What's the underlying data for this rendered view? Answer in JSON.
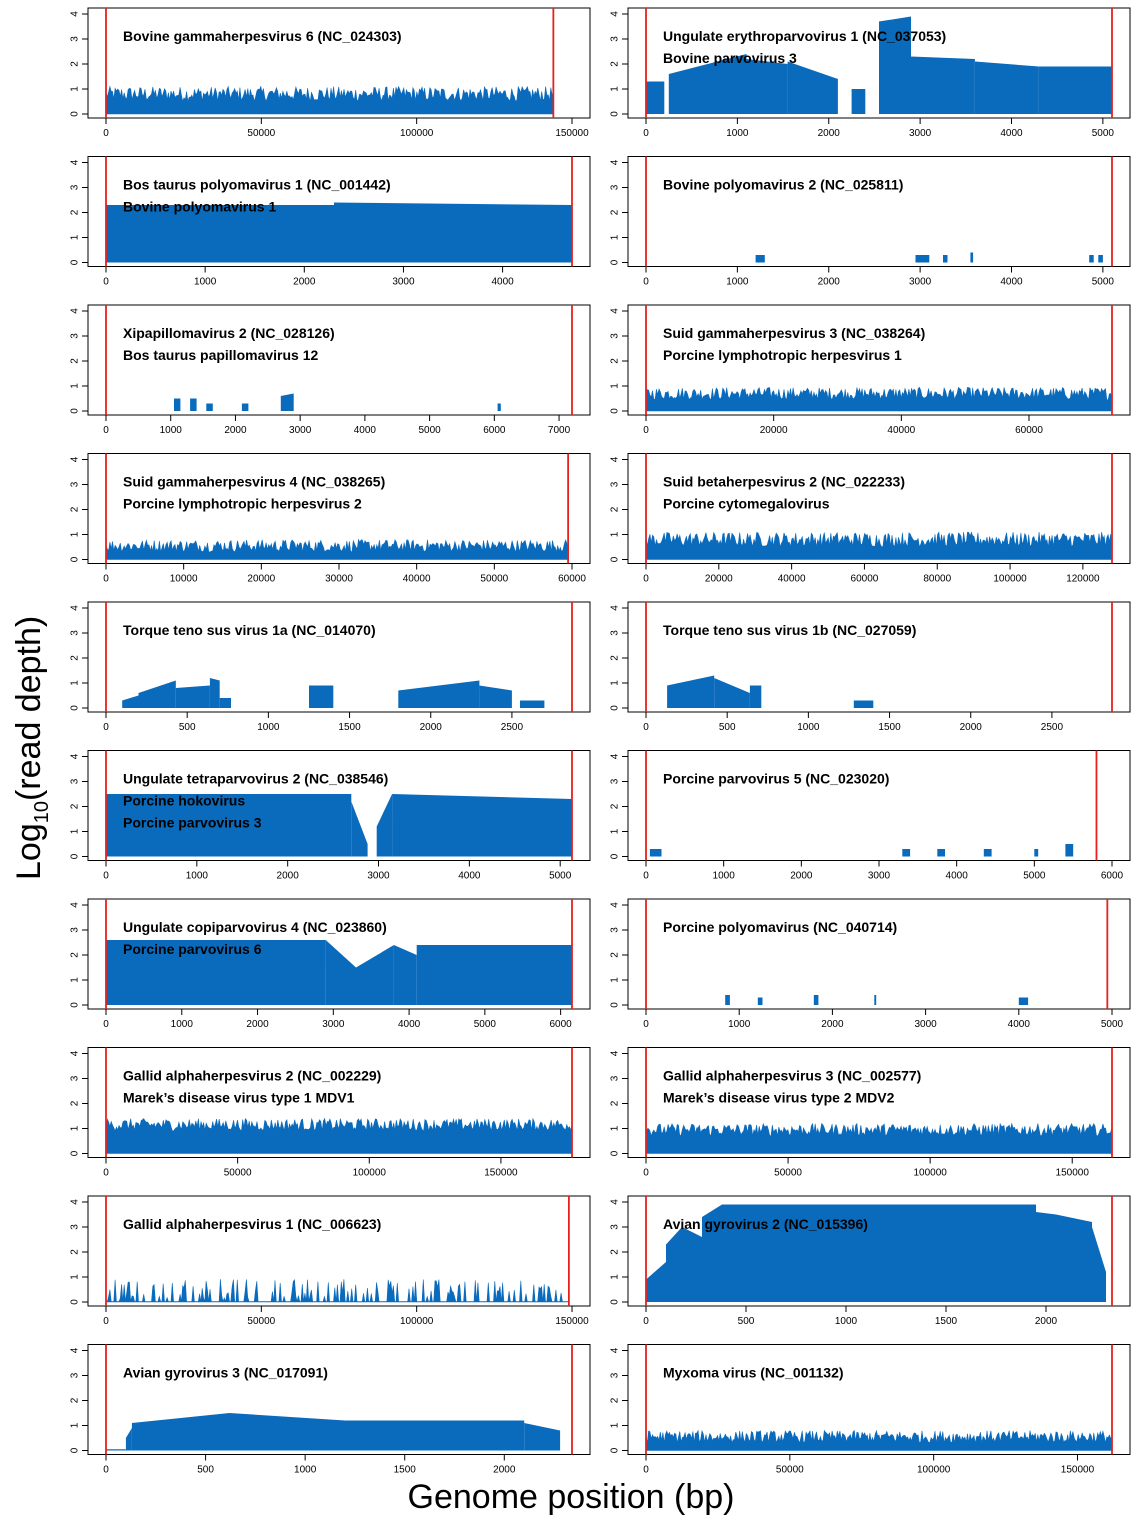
{
  "figure": {
    "ylabel_prefix": "Log",
    "ylabel_sub": "10",
    "ylabel_suffix": "(read depth)",
    "xlabel": "Genome position (bp)",
    "bar_color": "#0a6bbd",
    "boundary_color": "#e8211c"
  },
  "chart_data": [
    {
      "type": "area",
      "title": "Bovine gammaherpesvirus 6 (NC_024303)",
      "subtitle": "",
      "genome_length": 144000,
      "x_ticks": [
        0,
        50000,
        100000,
        150000
      ],
      "xlim": [
        0,
        150000
      ],
      "ylim": [
        0,
        4
      ],
      "y_ticks": [
        0,
        1,
        2,
        3,
        4
      ],
      "profile": "noisy",
      "depth": [
        [
          0,
          144000,
          0.8,
          0.3
        ]
      ]
    },
    {
      "type": "area",
      "title": "Ungulate erythroparvovirus 1 (NC_037053)",
      "subtitle": "Bovine parvovirus 3",
      "genome_length": 5100,
      "x_ticks": [
        0,
        1000,
        2000,
        3000,
        4000,
        5000
      ],
      "xlim": [
        0,
        5100
      ],
      "ylim": [
        0,
        4
      ],
      "y_ticks": [
        0,
        1,
        2,
        3,
        4
      ],
      "profile": "segments",
      "depth": [
        [
          0,
          200,
          1.3,
          1.3
        ],
        [
          250,
          1100,
          1.6,
          2.4
        ],
        [
          1100,
          1550,
          2.2,
          2.0
        ],
        [
          1550,
          2100,
          2.1,
          1.4
        ],
        [
          2250,
          2400,
          1.0,
          1.0
        ],
        [
          2550,
          2900,
          3.7,
          3.9
        ],
        [
          2900,
          3600,
          2.3,
          2.2
        ],
        [
          3600,
          4300,
          2.1,
          1.9
        ],
        [
          4300,
          5100,
          1.9,
          1.9
        ]
      ]
    },
    {
      "type": "area",
      "title": "Bos taurus polyomavirus 1 (NC_001442)",
      "subtitle": "Bovine polyomavirus 1",
      "genome_length": 4700,
      "x_ticks": [
        0,
        1000,
        2000,
        3000,
        4000
      ],
      "xlim": [
        0,
        4700
      ],
      "ylim": [
        0,
        4
      ],
      "y_ticks": [
        0,
        1,
        2,
        3,
        4
      ],
      "profile": "segments",
      "depth": [
        [
          0,
          2300,
          2.3,
          2.3
        ],
        [
          2300,
          4700,
          2.4,
          2.3
        ]
      ]
    },
    {
      "type": "area",
      "title": "Bovine polyomavirus 2 (NC_025811)",
      "subtitle": "",
      "genome_length": 5100,
      "x_ticks": [
        0,
        1000,
        2000,
        3000,
        4000,
        5000
      ],
      "xlim": [
        0,
        5100
      ],
      "ylim": [
        0,
        4
      ],
      "y_ticks": [
        0,
        1,
        2,
        3,
        4
      ],
      "profile": "segments",
      "depth": [
        [
          1200,
          1300,
          0.3,
          0.3
        ],
        [
          2950,
          3100,
          0.3,
          0.3
        ],
        [
          3250,
          3300,
          0.3,
          0.3
        ],
        [
          3550,
          3580,
          0.4,
          0.4
        ],
        [
          4850,
          4900,
          0.3,
          0.3
        ],
        [
          4950,
          5000,
          0.3,
          0.3
        ]
      ]
    },
    {
      "type": "area",
      "title": "Xipapillomavirus 2 (NC_028126)",
      "subtitle": "Bos taurus papillomavirus 12",
      "genome_length": 7200,
      "x_ticks": [
        0,
        1000,
        2000,
        3000,
        4000,
        5000,
        6000,
        7000
      ],
      "xlim": [
        0,
        7200
      ],
      "ylim": [
        0,
        4
      ],
      "y_ticks": [
        0,
        1,
        2,
        3,
        4
      ],
      "profile": "segments",
      "depth": [
        [
          1050,
          1150,
          0.5,
          0.5
        ],
        [
          1300,
          1400,
          0.5,
          0.5
        ],
        [
          1550,
          1650,
          0.3,
          0.3
        ],
        [
          2100,
          2200,
          0.3,
          0.3
        ],
        [
          2700,
          2900,
          0.6,
          0.7
        ],
        [
          6050,
          6100,
          0.3,
          0.3
        ]
      ]
    },
    {
      "type": "area",
      "title": "Suid gammaherpesvirus 3 (NC_038264)",
      "subtitle": "Porcine lymphotropic herpesvirus 1",
      "genome_length": 73000,
      "x_ticks": [
        0,
        20000,
        40000,
        60000
      ],
      "xlim": [
        0,
        73000
      ],
      "ylim": [
        0,
        4
      ],
      "y_ticks": [
        0,
        1,
        2,
        3,
        4
      ],
      "profile": "noisy",
      "depth": [
        [
          0,
          73000,
          0.7,
          0.25
        ]
      ]
    },
    {
      "type": "area",
      "title": "Suid gammaherpesvirus 4 (NC_038265)",
      "subtitle": "Porcine lymphotropic herpesvirus 2",
      "genome_length": 59500,
      "x_ticks": [
        0,
        10000,
        20000,
        30000,
        40000,
        50000,
        60000
      ],
      "xlim": [
        0,
        60000
      ],
      "ylim": [
        0,
        4
      ],
      "y_ticks": [
        0,
        1,
        2,
        3,
        4
      ],
      "profile": "noisy",
      "depth": [
        [
          0,
          59500,
          0.55,
          0.25
        ]
      ]
    },
    {
      "type": "area",
      "title": "Suid betaherpesvirus 2 (NC_022233)",
      "subtitle": "Porcine cytomegalovirus",
      "genome_length": 128000,
      "x_ticks": [
        0,
        20000,
        40000,
        60000,
        80000,
        100000,
        120000
      ],
      "xlim": [
        0,
        128000
      ],
      "ylim": [
        0,
        4
      ],
      "y_ticks": [
        0,
        1,
        2,
        3,
        4
      ],
      "profile": "noisy",
      "depth": [
        [
          0,
          128000,
          0.8,
          0.3
        ]
      ]
    },
    {
      "type": "area",
      "title": "Torque teno sus virus 1a (NC_014070)",
      "subtitle": "",
      "genome_length": 2870,
      "x_ticks": [
        0,
        500,
        1000,
        1500,
        2000,
        2500
      ],
      "xlim": [
        0,
        2870
      ],
      "ylim": [
        0,
        4
      ],
      "y_ticks": [
        0,
        1,
        2,
        3,
        4
      ],
      "profile": "segments",
      "depth": [
        [
          100,
          200,
          0.3,
          0.5
        ],
        [
          200,
          430,
          0.6,
          1.1
        ],
        [
          430,
          640,
          0.8,
          0.9
        ],
        [
          640,
          700,
          1.2,
          1.1
        ],
        [
          700,
          770,
          0.4,
          0.4
        ],
        [
          1250,
          1400,
          0.9,
          0.9
        ],
        [
          1800,
          2300,
          0.7,
          1.1
        ],
        [
          2300,
          2500,
          0.9,
          0.7
        ],
        [
          2550,
          2700,
          0.3,
          0.3
        ]
      ]
    },
    {
      "type": "area",
      "title": "Torque teno sus virus 1b (NC_027059)",
      "subtitle": "",
      "genome_length": 2870,
      "x_ticks": [
        0,
        500,
        1000,
        1500,
        2000,
        2500
      ],
      "xlim": [
        0,
        2870
      ],
      "ylim": [
        0,
        4
      ],
      "y_ticks": [
        0,
        1,
        2,
        3,
        4
      ],
      "profile": "segments",
      "depth": [
        [
          130,
          420,
          0.9,
          1.3
        ],
        [
          420,
          640,
          1.2,
          0.6
        ],
        [
          640,
          710,
          0.9,
          0.9
        ],
        [
          1280,
          1400,
          0.3,
          0.3
        ]
      ]
    },
    {
      "type": "area",
      "title": "Ungulate tetraparvovirus 2 (NC_038546)",
      "subtitle": "Porcine hokovirus",
      "subtitle2": "Porcine parvovirus 3",
      "genome_length": 5130,
      "x_ticks": [
        0,
        1000,
        2000,
        3000,
        4000,
        5000
      ],
      "xlim": [
        0,
        5130
      ],
      "ylim": [
        0,
        4
      ],
      "y_ticks": [
        0,
        1,
        2,
        3,
        4
      ],
      "profile": "segments",
      "depth": [
        [
          0,
          2700,
          2.5,
          2.5
        ],
        [
          2700,
          2880,
          2.2,
          0.5
        ],
        [
          2980,
          3150,
          1.2,
          2.5
        ],
        [
          3150,
          5130,
          2.5,
          2.3
        ]
      ]
    },
    {
      "type": "area",
      "title": "Porcine parvovirus 5 (NC_023020)",
      "subtitle": "",
      "genome_length": 5800,
      "x_ticks": [
        0,
        1000,
        2000,
        3000,
        4000,
        5000,
        6000
      ],
      "xlim": [
        0,
        6000
      ],
      "ylim": [
        0,
        4
      ],
      "y_ticks": [
        0,
        1,
        2,
        3,
        4
      ],
      "profile": "segments",
      "depth": [
        [
          50,
          200,
          0.3,
          0.3
        ],
        [
          3300,
          3400,
          0.3,
          0.3
        ],
        [
          3750,
          3850,
          0.3,
          0.3
        ],
        [
          4350,
          4450,
          0.3,
          0.3
        ],
        [
          5000,
          5050,
          0.3,
          0.3
        ],
        [
          5400,
          5500,
          0.5,
          0.5
        ]
      ]
    },
    {
      "type": "area",
      "title": "Ungulate copiparvovirus 4 (NC_023860)",
      "subtitle": "Porcine parvovirus 6",
      "genome_length": 6150,
      "x_ticks": [
        0,
        1000,
        2000,
        3000,
        4000,
        5000,
        6000
      ],
      "xlim": [
        0,
        6150
      ],
      "ylim": [
        0,
        4
      ],
      "y_ticks": [
        0,
        1,
        2,
        3,
        4
      ],
      "profile": "segments",
      "depth": [
        [
          0,
          2900,
          2.6,
          2.6
        ],
        [
          2900,
          3300,
          2.6,
          1.5
        ],
        [
          3300,
          3800,
          1.5,
          2.4
        ],
        [
          3800,
          4100,
          2.4,
          2.0
        ],
        [
          4100,
          6150,
          2.4,
          2.4
        ]
      ]
    },
    {
      "type": "area",
      "title": "Porcine polyomavirus (NC_040714)",
      "subtitle": "",
      "genome_length": 4950,
      "x_ticks": [
        0,
        1000,
        2000,
        3000,
        4000,
        5000
      ],
      "xlim": [
        0,
        5000
      ],
      "ylim": [
        0,
        4
      ],
      "y_ticks": [
        0,
        1,
        2,
        3,
        4
      ],
      "profile": "segments",
      "depth": [
        [
          850,
          900,
          0.4,
          0.4
        ],
        [
          1200,
          1250,
          0.3,
          0.3
        ],
        [
          1800,
          1850,
          0.4,
          0.4
        ],
        [
          2450,
          2470,
          0.4,
          0.4
        ],
        [
          4000,
          4100,
          0.3,
          0.3
        ]
      ]
    },
    {
      "type": "area",
      "title": "Gallid alphaherpesvirus 2 (NC_002229)",
      "subtitle": "Marek’s disease virus type 1 MDV1",
      "genome_length": 177000,
      "x_ticks": [
        0,
        50000,
        100000,
        150000
      ],
      "xlim": [
        0,
        177000
      ],
      "ylim": [
        0,
        4
      ],
      "y_ticks": [
        0,
        1,
        2,
        3,
        4
      ],
      "profile": "noisy",
      "depth": [
        [
          0,
          177000,
          1.15,
          0.25
        ]
      ]
    },
    {
      "type": "area",
      "title": "Gallid alphaherpesvirus 3 (NC_002577)",
      "subtitle": "Marek’s disease virus type 2 MDV2",
      "genome_length": 164000,
      "x_ticks": [
        0,
        50000,
        100000,
        150000
      ],
      "xlim": [
        0,
        164000
      ],
      "ylim": [
        0,
        4
      ],
      "y_ticks": [
        0,
        1,
        2,
        3,
        4
      ],
      "profile": "noisy",
      "depth": [
        [
          0,
          164000,
          0.95,
          0.25
        ]
      ]
    },
    {
      "type": "area",
      "title": "Gallid alphaherpesvirus 1 (NC_006623)",
      "subtitle": "",
      "genome_length": 149000,
      "x_ticks": [
        0,
        50000,
        100000,
        150000
      ],
      "xlim": [
        0,
        150000
      ],
      "ylim": [
        0,
        4
      ],
      "y_ticks": [
        0,
        1,
        2,
        3,
        4
      ],
      "profile": "sparse",
      "depth": [
        [
          0,
          149000,
          0.5,
          0.35
        ]
      ]
    },
    {
      "type": "area",
      "title": "Avian gyrovirus 2 (NC_015396)",
      "subtitle": "",
      "genome_length": 2330,
      "x_ticks": [
        0,
        500,
        1000,
        1500,
        2000
      ],
      "xlim": [
        0,
        2330
      ],
      "ylim": [
        0,
        4
      ],
      "y_ticks": [
        0,
        1,
        2,
        3,
        4
      ],
      "profile": "segments",
      "depth": [
        [
          0,
          100,
          0.9,
          1.6
        ],
        [
          100,
          180,
          2.3,
          3.0
        ],
        [
          180,
          280,
          3.0,
          2.6
        ],
        [
          280,
          380,
          3.4,
          3.9
        ],
        [
          380,
          1950,
          3.9,
          3.9
        ],
        [
          1950,
          2050,
          3.6,
          3.5
        ],
        [
          2050,
          2230,
          3.5,
          3.2
        ],
        [
          2230,
          2300,
          3.0,
          1.2
        ]
      ]
    },
    {
      "type": "area",
      "title": "Avian gyrovirus 3 (NC_017091)",
      "subtitle": "",
      "genome_length": 2340,
      "x_ticks": [
        0,
        500,
        1000,
        1500,
        2000
      ],
      "xlim": [
        0,
        2340
      ],
      "ylim": [
        0,
        4
      ],
      "y_ticks": [
        0,
        1,
        2,
        3,
        4
      ],
      "profile": "segments",
      "depth": [
        [
          0,
          100,
          0.05,
          0.05
        ],
        [
          100,
          130,
          0.5,
          0.9
        ],
        [
          130,
          620,
          1.1,
          1.5
        ],
        [
          620,
          1200,
          1.5,
          1.2
        ],
        [
          1200,
          2100,
          1.2,
          1.2
        ],
        [
          2100,
          2280,
          1.1,
          0.8
        ]
      ]
    },
    {
      "type": "area",
      "title": "Myxoma virus (NC_001132)",
      "subtitle": "",
      "genome_length": 162000,
      "x_ticks": [
        0,
        50000,
        100000,
        150000
      ],
      "xlim": [
        0,
        162000
      ],
      "ylim": [
        0,
        4
      ],
      "y_ticks": [
        0,
        1,
        2,
        3,
        4
      ],
      "profile": "noisy",
      "depth": [
        [
          0,
          162000,
          0.55,
          0.25
        ]
      ]
    }
  ]
}
